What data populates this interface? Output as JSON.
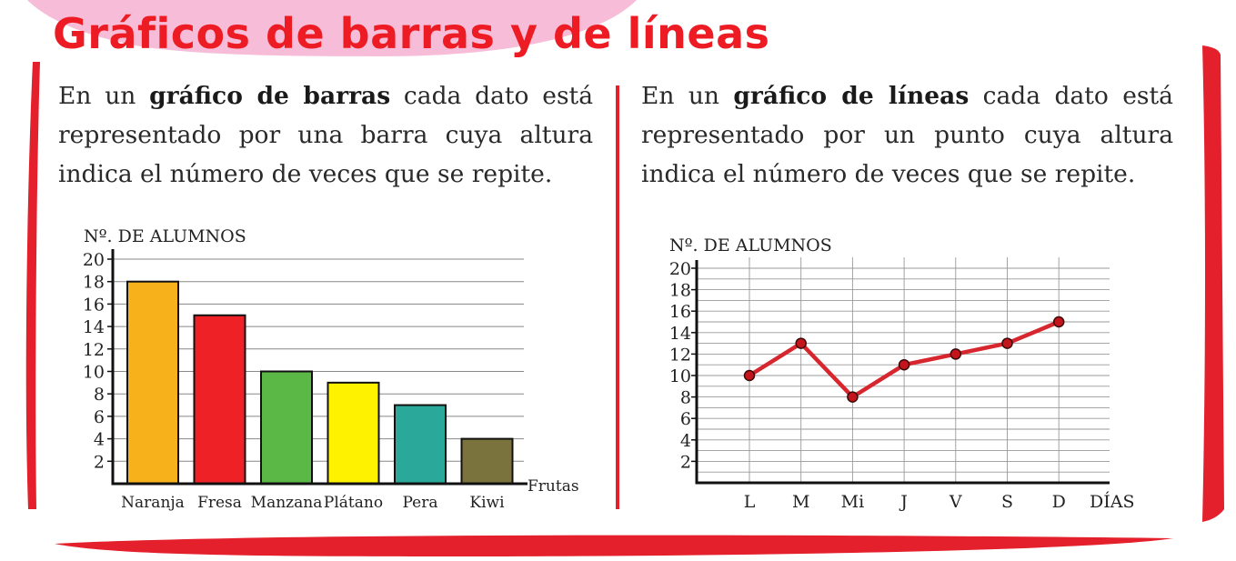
{
  "title": "Gráficos de barras y de líneas",
  "colors": {
    "title": "#ed1c24",
    "frame": "#e3202b",
    "blob": "#f7bdd8",
    "line_series": "#d7262e",
    "marker": "#c4151c",
    "grid": "#888888",
    "axis": "#111111"
  },
  "left_text": {
    "intro": "En un ",
    "bold": "gráfico de barras",
    "rest": " cada dato está representado por una barra cuya altura indica el número de veces que se repite."
  },
  "right_text": {
    "intro": "En un ",
    "bold": "gráfico de líneas",
    "rest": " cada dato está representado por un punto cuya altura indica el número de veces que se repite."
  },
  "chart_data": [
    {
      "type": "bar",
      "ylabel": "Nº. DE ALUMNOS",
      "xlabel": "Frutas",
      "ylim": [
        0,
        20
      ],
      "yticks": [
        2,
        4,
        6,
        8,
        10,
        12,
        14,
        16,
        18,
        20
      ],
      "grid": true,
      "categories": [
        "Naranja",
        "Fresa",
        "Manzana",
        "Plátano",
        "Pera",
        "Kiwi"
      ],
      "values": [
        18,
        15,
        10,
        9,
        7,
        4
      ],
      "colors": [
        "#f7b21b",
        "#ee2226",
        "#5bb846",
        "#fff200",
        "#2aa99b",
        "#7a733e"
      ]
    },
    {
      "type": "line",
      "ylabel": "Nº. DE ALUMNOS",
      "xlabel": "DÍAS",
      "ylim": [
        0,
        20
      ],
      "yticks": [
        2,
        4,
        6,
        8,
        10,
        12,
        14,
        16,
        18,
        20
      ],
      "grid": true,
      "categories": [
        "L",
        "M",
        "Mi",
        "J",
        "V",
        "S",
        "D"
      ],
      "values": [
        10,
        13,
        8,
        11,
        12,
        13,
        15
      ]
    }
  ]
}
